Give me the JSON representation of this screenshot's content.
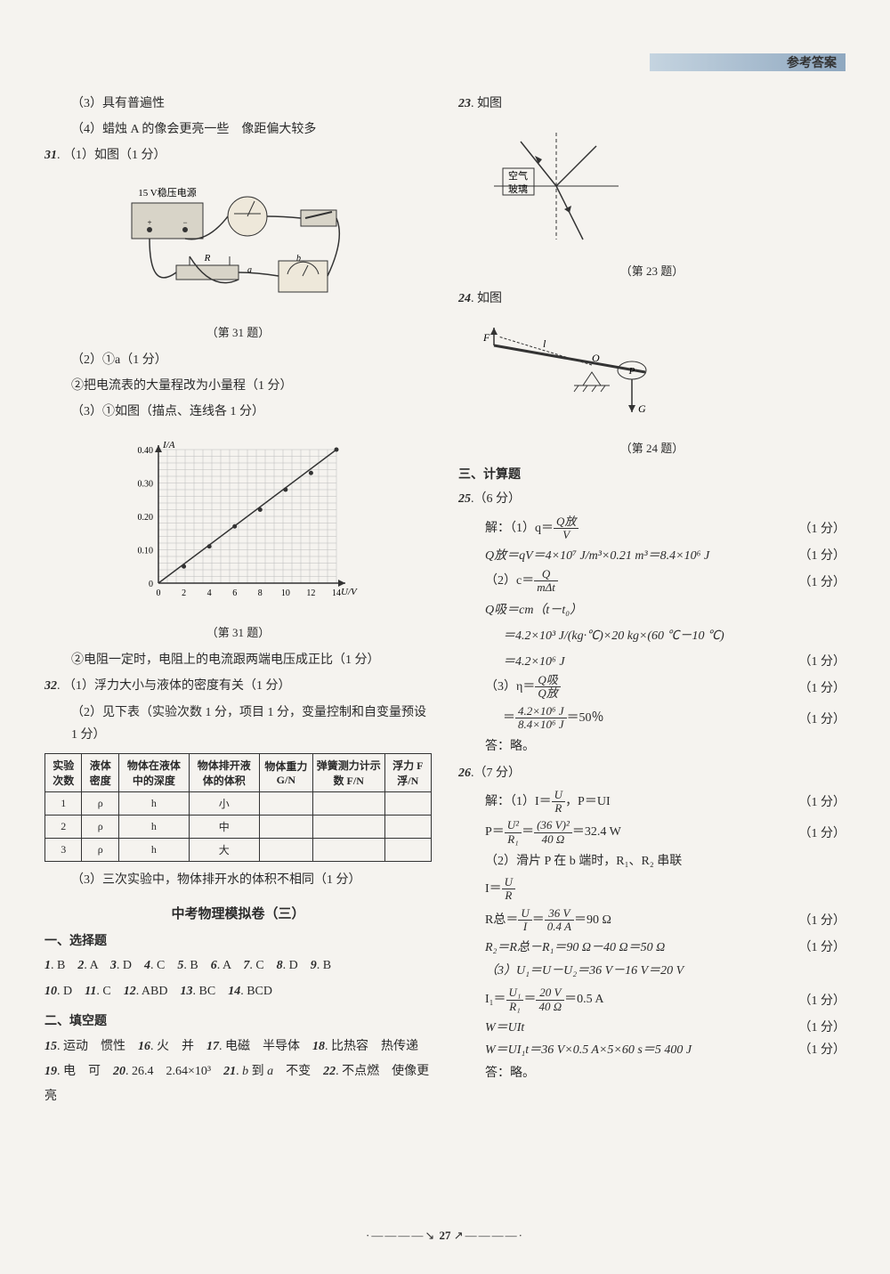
{
  "header": {
    "title": "参考答案"
  },
  "left": {
    "l1": "（3）具有普遍性",
    "l2": "（4）蜡烛 A 的像会更亮一些　像距偏大较多",
    "q31_head": "31.（1）如图（1 分）",
    "fig31a_caption": "（第 31 题）",
    "circuit_label": "15 V稳压电源",
    "circuit_R": "R",
    "circuit_a": "a",
    "circuit_b": "b",
    "l3": "（2）①a（1 分）",
    "l4": "②把电流表的大量程改为小量程（1 分）",
    "l5": "（3）①如图（描点、连线各 1 分）",
    "graph": {
      "ylabel": "I/A",
      "xlabel": "U/V",
      "yticks": [
        "0",
        "0.10",
        "0.20",
        "0.30",
        "0.40"
      ],
      "xticks": [
        "0",
        "2",
        "4",
        "6",
        "8",
        "10",
        "12",
        "14"
      ],
      "points": [
        [
          2,
          0.05
        ],
        [
          4,
          0.11
        ],
        [
          6,
          0.17
        ],
        [
          8,
          0.22
        ],
        [
          10,
          0.28
        ],
        [
          12,
          0.33
        ],
        [
          14,
          0.4
        ]
      ]
    },
    "fig31b_caption": "（第 31 题）",
    "l6": "②电阻一定时，电阻上的电流跟两端电压成正比（1 分）",
    "q32_1": "32.（1）浮力大小与液体的密度有关（1 分）",
    "q32_2": "（2）见下表（实验次数 1 分，项目 1 分，变量控制和自变量预设 1 分）",
    "table": {
      "headers": [
        "实验次数",
        "液体密度",
        "物体在液体中的深度",
        "物体排开液体的体积",
        "物体重力 G/N",
        "弹簧测力计示数 F/N",
        "浮力 F浮/N"
      ],
      "rows": [
        [
          "1",
          "ρ",
          "h",
          "小",
          "",
          "",
          ""
        ],
        [
          "2",
          "ρ",
          "h",
          "中",
          "",
          "",
          ""
        ],
        [
          "3",
          "ρ",
          "h",
          "大",
          "",
          "",
          ""
        ]
      ]
    },
    "q32_3": "（3）三次实验中，物体排开水的体积不相同（1 分）",
    "exam_title": "中考物理模拟卷（三）",
    "sec1_title": "一、选择题",
    "choice_line1": "1. B　2. A　3. D　4. C　5. B　6. A　7. C　8. D　9. B",
    "choice_line2": "10. D　11. C　12. ABD　13. BC　14. BCD",
    "sec2_title": "二、填空题",
    "fill_line1": "15. 运动　惯性　16. 火　并　17. 电磁　半导体　18. 比热容　热传递　19. 电　可　20. 26.4　2.64×10³　21. b 到 a 不变　22. 不点燃　使像更亮"
  },
  "right": {
    "q23": "23. 如图",
    "refraction": {
      "air": "空气",
      "glass": "玻璃"
    },
    "fig23_caption": "（第 23 题）",
    "q24": "24. 如图",
    "lever": {
      "F": "F",
      "l": "l",
      "O": "O",
      "P": "P",
      "G": "G"
    },
    "fig24_caption": "（第 24 题）",
    "sec3_title": "三、计算题",
    "q25_head": "25.（6 分）",
    "q25_1a_pre": "解：（1）q＝",
    "q25_1a_num": "Q放",
    "q25_1a_den": "V",
    "q25_1b": "Q放＝qV＝4×10⁷ J/m³×0.21 m³＝8.4×10⁶ J",
    "q25_2a_pre": "（2）c＝",
    "q25_2a_num": "Q",
    "q25_2a_den": "mΔt",
    "q25_2b": "Q吸＝cm（t－t₀）",
    "q25_2c": "＝4.2×10³ J/(kg·℃)×20 kg×(60 ℃－10 ℃)",
    "q25_2d": "＝4.2×10⁶ J",
    "q25_3a_pre": "（3）η＝",
    "q25_3a_num": "Q吸",
    "q25_3a_den": "Q放",
    "q25_3b_num": "4.2×10⁶ J",
    "q25_3b_den": "8.4×10⁶ J",
    "q25_3b_eq": "＝50％",
    "ans_skip": "答：略。",
    "q26_head": "26.（7 分）",
    "q26_1a_pre": "解：（1）I＝",
    "q26_1a_num": "U",
    "q26_1a_den": "R",
    "q26_1a_post": "，P＝UI",
    "q26_1b_pre": "P＝",
    "q26_1b_num": "U²",
    "q26_1b_den": "R₁",
    "q26_1b_mid": "＝",
    "q26_1b_num2": "(36 V)²",
    "q26_1b_den2": "40 Ω",
    "q26_1b_post": "＝32.4 W",
    "q26_2a": "（2）滑片 P 在 b 端时，R₁、R₂ 串联",
    "q26_2b_pre": "I＝",
    "q26_2b_num": "U",
    "q26_2b_den": "R",
    "q26_2c_pre": "R总＝",
    "q26_2c_num": "U",
    "q26_2c_den": "I",
    "q26_2c_mid": "＝",
    "q26_2c_num2": "36 V",
    "q26_2c_den2": "0.4 A",
    "q26_2c_post": "＝90 Ω",
    "q26_2d": "R₂＝R总－R₁＝90 Ω－40 Ω＝50 Ω",
    "q26_3a": "（3）U₁＝U－U₂＝36 V－16 V＝20 V",
    "q26_3b_pre": "I₁＝",
    "q26_3b_num": "U₁",
    "q26_3b_den": "R₁",
    "q26_3b_mid": "＝",
    "q26_3b_num2": "20 V",
    "q26_3b_den2": "40 Ω",
    "q26_3b_post": "＝0.5 A",
    "q26_3c": "W＝UIt",
    "q26_3d": "W＝UI₁t＝36 V×0.5 A×5×60 s＝5 400 J",
    "score1": "（1 分）"
  },
  "footer": {
    "page": "27",
    "deco_l": "·――――↘",
    "deco_r": "↗――――·"
  }
}
